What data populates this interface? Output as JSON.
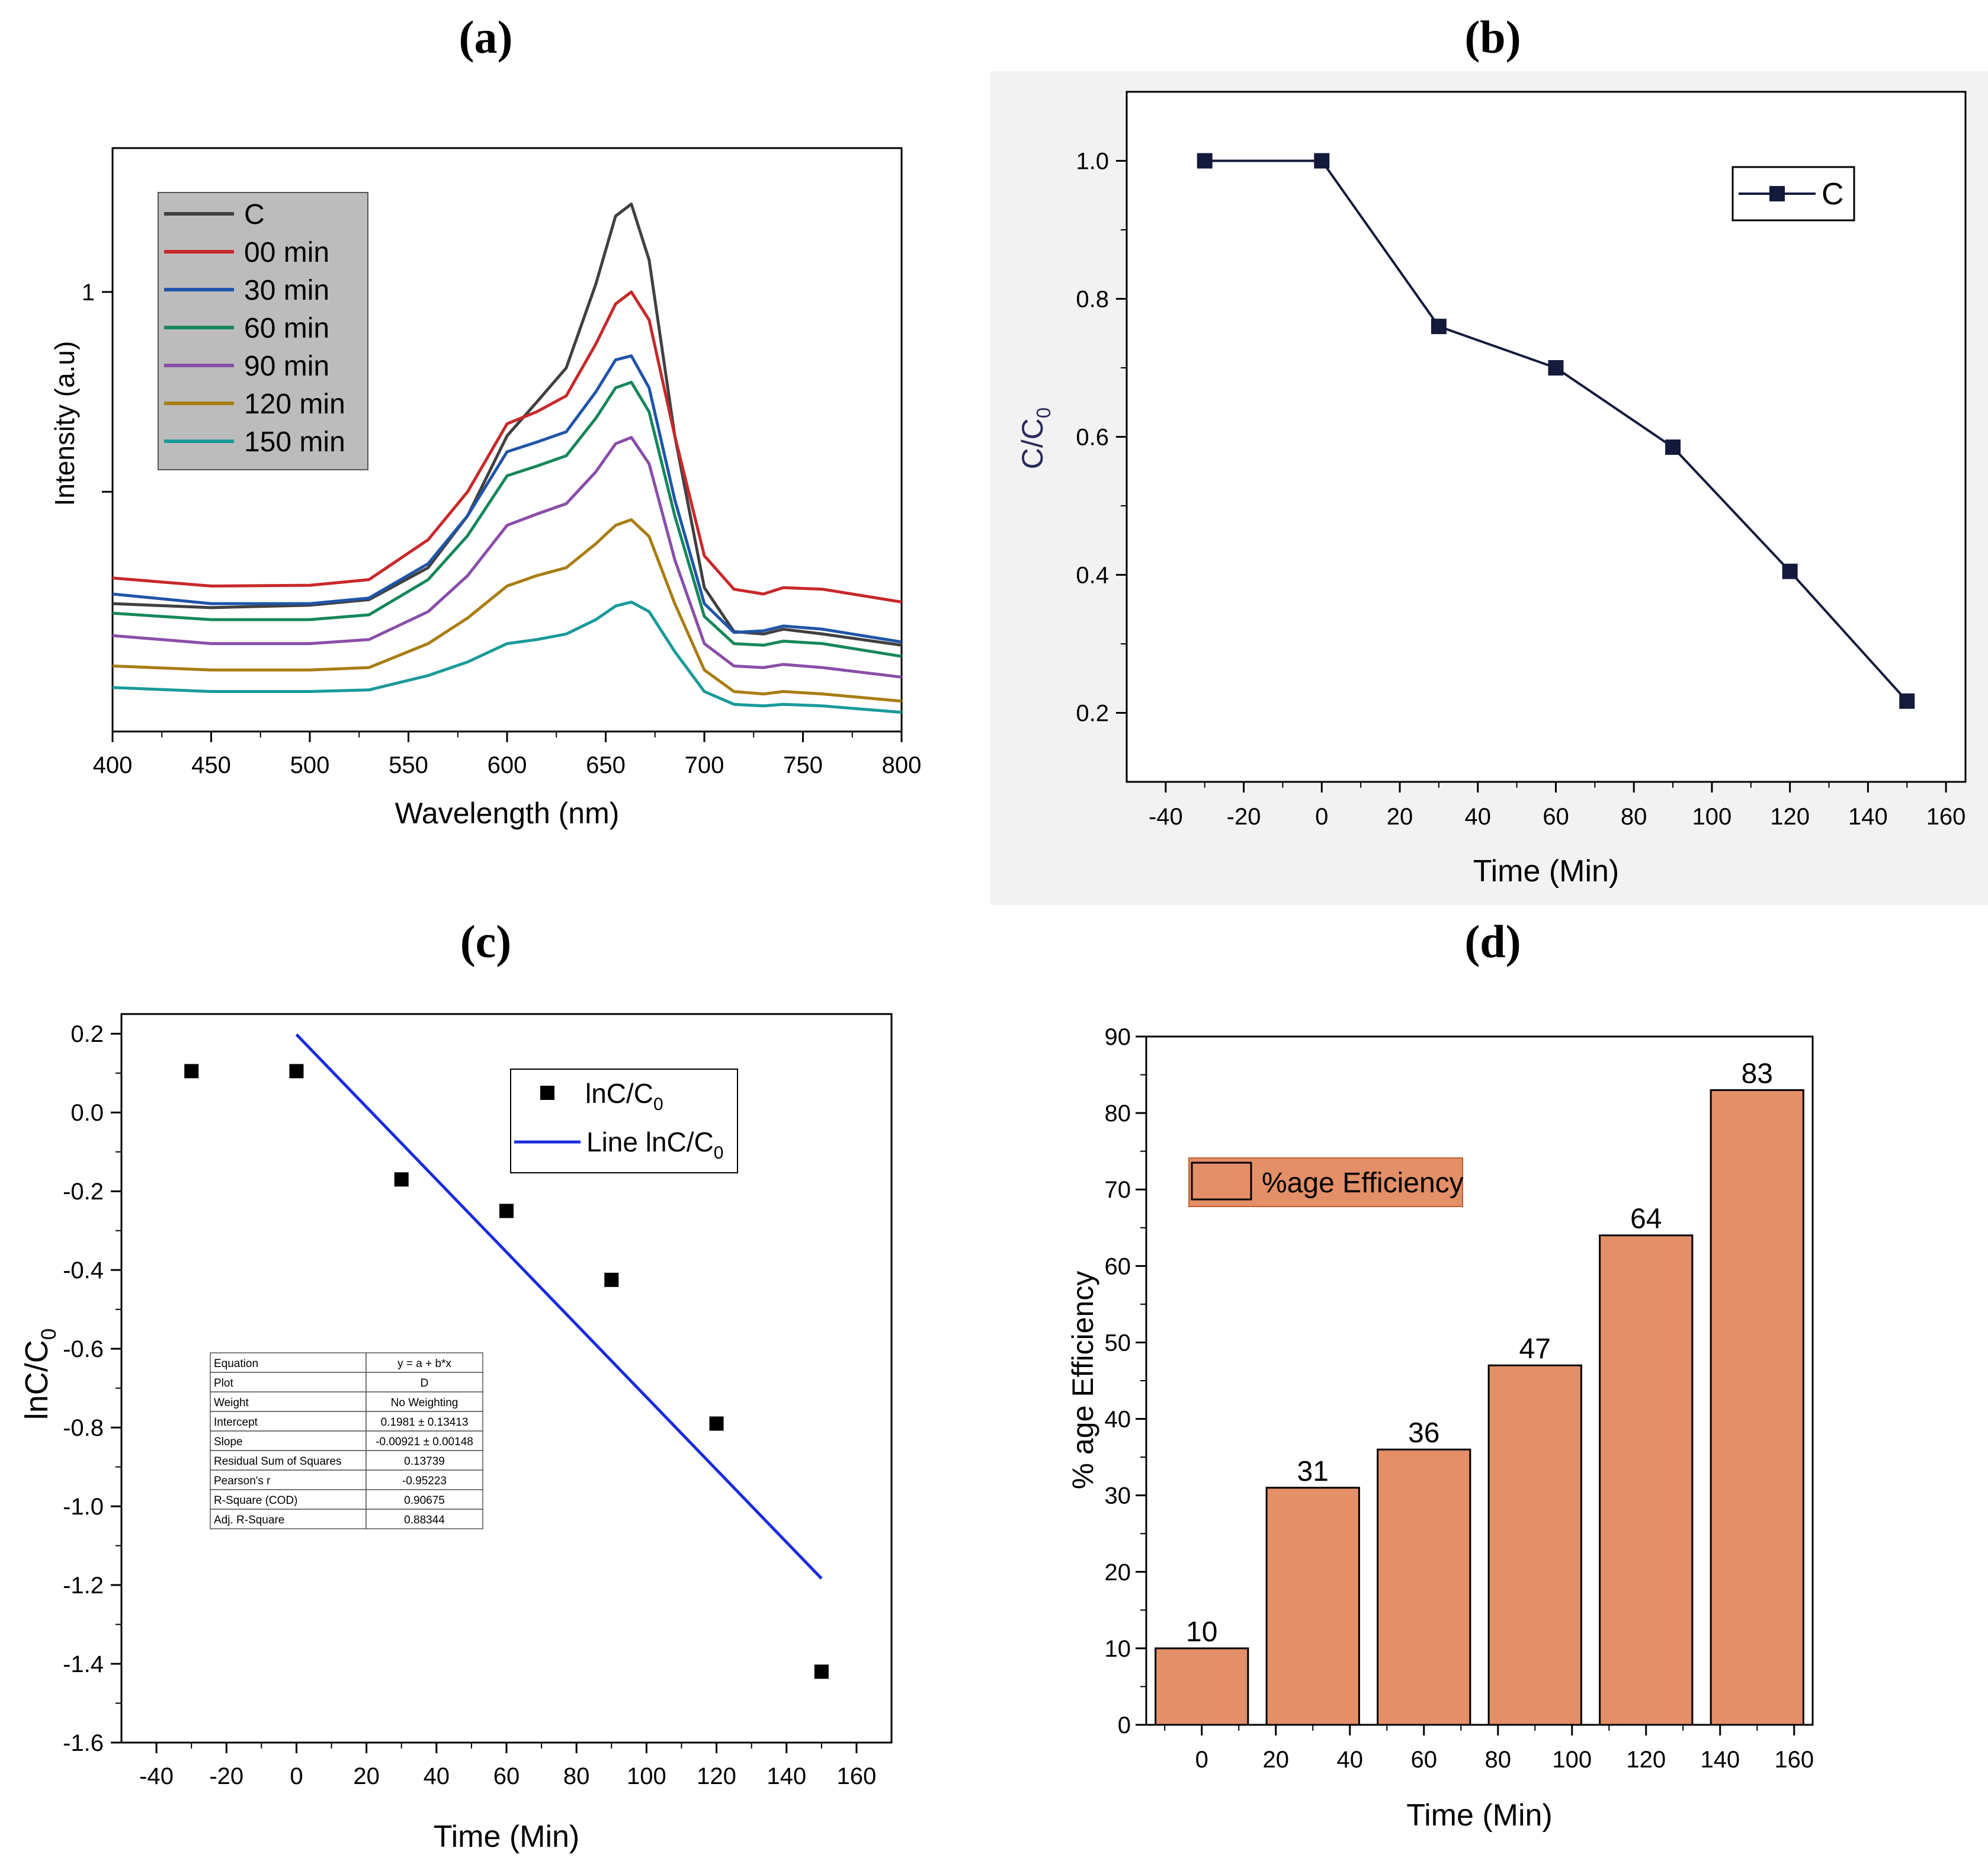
{
  "chart_data": [
    {
      "panel": "(a)",
      "type": "line",
      "xlabel": "Wavelength (nm)",
      "ylabel": "Intensity (a.u)",
      "xlim": [
        400,
        800
      ],
      "ylim": [
        0.45,
        1.18
      ],
      "x_ticks": [
        400,
        450,
        500,
        550,
        600,
        650,
        700,
        750,
        800
      ],
      "y_tick_labels": [
        {
          "v": 1,
          "label": "1"
        },
        {
          "v": 0.75,
          "label": ""
        }
      ],
      "legend_position": "top-left",
      "series": [
        {
          "name": "C",
          "color": "#404040",
          "x": [
            400,
            450,
            500,
            530,
            560,
            580,
            600,
            615,
            630,
            645,
            655,
            663,
            672,
            685,
            700,
            715,
            730,
            740,
            760,
            800
          ],
          "y": [
            0.61,
            0.605,
            0.608,
            0.615,
            0.655,
            0.72,
            0.82,
            0.862,
            0.905,
            1.01,
            1.095,
            1.11,
            1.04,
            0.82,
            0.63,
            0.575,
            0.572,
            0.578,
            0.572,
            0.558
          ]
        },
        {
          "name": "00 min",
          "color": "#c8282a",
          "x": [
            400,
            450,
            500,
            530,
            560,
            580,
            600,
            615,
            630,
            645,
            655,
            663,
            672,
            685,
            700,
            715,
            730,
            740,
            760,
            800
          ],
          "y": [
            0.642,
            0.632,
            0.633,
            0.64,
            0.69,
            0.75,
            0.835,
            0.85,
            0.87,
            0.935,
            0.985,
            1.0,
            0.965,
            0.82,
            0.67,
            0.628,
            0.622,
            0.63,
            0.628,
            0.612
          ]
        },
        {
          "name": "30 min",
          "color": "#1f55a8",
          "x": [
            400,
            450,
            500,
            530,
            560,
            580,
            600,
            615,
            630,
            645,
            655,
            663,
            672,
            685,
            700,
            715,
            730,
            740,
            760,
            800
          ],
          "y": [
            0.622,
            0.61,
            0.61,
            0.617,
            0.66,
            0.72,
            0.8,
            0.812,
            0.825,
            0.875,
            0.915,
            0.92,
            0.88,
            0.74,
            0.61,
            0.574,
            0.576,
            0.582,
            0.578,
            0.562
          ]
        },
        {
          "name": "60 min",
          "color": "#16875a",
          "x": [
            400,
            450,
            500,
            530,
            560,
            580,
            600,
            615,
            630,
            645,
            655,
            663,
            672,
            685,
            700,
            715,
            730,
            740,
            760,
            800
          ],
          "y": [
            0.598,
            0.59,
            0.59,
            0.596,
            0.64,
            0.695,
            0.77,
            0.782,
            0.795,
            0.842,
            0.88,
            0.887,
            0.85,
            0.72,
            0.594,
            0.56,
            0.558,
            0.563,
            0.56,
            0.544
          ]
        },
        {
          "name": "90 min",
          "color": "#8a4ea8",
          "x": [
            400,
            450,
            500,
            530,
            560,
            580,
            600,
            615,
            630,
            645,
            655,
            663,
            672,
            685,
            700,
            715,
            730,
            740,
            760,
            800
          ],
          "y": [
            0.57,
            0.56,
            0.56,
            0.565,
            0.6,
            0.645,
            0.708,
            0.722,
            0.735,
            0.775,
            0.81,
            0.818,
            0.785,
            0.665,
            0.56,
            0.532,
            0.53,
            0.534,
            0.53,
            0.518
          ]
        },
        {
          "name": "120 min",
          "color": "#a87d12",
          "x": [
            400,
            450,
            500,
            530,
            560,
            580,
            600,
            615,
            630,
            645,
            655,
            663,
            672,
            685,
            700,
            715,
            730,
            740,
            760,
            800
          ],
          "y": [
            0.532,
            0.527,
            0.527,
            0.53,
            0.56,
            0.592,
            0.632,
            0.645,
            0.655,
            0.685,
            0.708,
            0.715,
            0.694,
            0.61,
            0.527,
            0.5,
            0.497,
            0.5,
            0.497,
            0.488
          ]
        },
        {
          "name": "150 min",
          "color": "#1a9a9a",
          "x": [
            400,
            450,
            500,
            530,
            560,
            580,
            600,
            615,
            630,
            645,
            655,
            663,
            672,
            685,
            700,
            715,
            730,
            740,
            760,
            800
          ],
          "y": [
            0.505,
            0.5,
            0.5,
            0.502,
            0.52,
            0.537,
            0.56,
            0.565,
            0.572,
            0.59,
            0.607,
            0.612,
            0.6,
            0.55,
            0.5,
            0.484,
            0.482,
            0.484,
            0.482,
            0.474
          ]
        }
      ]
    },
    {
      "panel": "(b)",
      "type": "line",
      "xlabel": "Time (Min)",
      "ylabel_main": "C/C",
      "ylabel_sub": "0",
      "xlim": [
        -50,
        165
      ],
      "ylim": [
        0.1,
        1.1
      ],
      "x_ticks": [
        -40,
        -20,
        0,
        20,
        40,
        60,
        80,
        100,
        120,
        140,
        160
      ],
      "y_ticks": [
        {
          "v": 0.2,
          "label": "0.2"
        },
        {
          "v": 0.4,
          "label": "0.4"
        },
        {
          "v": 0.6,
          "label": "0.6"
        },
        {
          "v": 0.8,
          "label": "0.8"
        },
        {
          "v": 1.0,
          "label": "1.0"
        }
      ],
      "legend_position": "top-right",
      "series": [
        {
          "name": "C",
          "color": "#141a3c",
          "x": [
            -30,
            0,
            30,
            60,
            90,
            120,
            150
          ],
          "y": [
            1.0,
            1.0,
            0.76,
            0.7,
            0.585,
            0.405,
            0.217
          ]
        }
      ]
    },
    {
      "panel": "(c)",
      "type": "scatter",
      "xlabel": "Time (Min)",
      "ylabel_main": "lnC/C",
      "ylabel_sub": "0",
      "xlim": [
        -50,
        170
      ],
      "ylim": [
        -1.6,
        0.25
      ],
      "x_ticks": [
        -40,
        -20,
        0,
        20,
        40,
        60,
        80,
        100,
        120,
        140,
        160
      ],
      "y_ticks": [
        {
          "v": 0.2,
          "label": "0.2"
        },
        {
          "v": 0.0,
          "label": "0.0"
        },
        {
          "v": -0.2,
          "label": "-0.2"
        },
        {
          "v": -0.4,
          "label": "-0.4"
        },
        {
          "v": -0.6,
          "label": "-0.6"
        },
        {
          "v": -0.8,
          "label": "-0.8"
        },
        {
          "v": -1.0,
          "label": "-1.0"
        },
        {
          "v": -1.2,
          "label": "-1.2"
        },
        {
          "v": -1.4,
          "label": "-1.4"
        },
        {
          "v": -1.6,
          "label": "-1.6"
        }
      ],
      "legend_position": "top-right",
      "series": [
        {
          "name_main": "lnC/C",
          "name_sub": "0",
          "color": "#000000",
          "x": [
            -30,
            0,
            30,
            60,
            90,
            120,
            150
          ],
          "y": [
            0.105,
            0.105,
            -0.17,
            -0.25,
            -0.425,
            -0.79,
            -1.42
          ]
        },
        {
          "name_main": "Line lnC/C",
          "name_sub": "0",
          "color": "#1a2cdc",
          "x": [
            0,
            150
          ],
          "y": [
            0.1981,
            -1.1834
          ]
        }
      ],
      "fit_table": [
        [
          "Equation",
          "y = a + b*x"
        ],
        [
          "Plot",
          "D"
        ],
        [
          "Weight",
          "No Weighting"
        ],
        [
          "Intercept",
          "0.1981 ± 0.13413"
        ],
        [
          "Slope",
          "-0.00921 ± 0.00148"
        ],
        [
          "Residual Sum of Squares",
          "0.13739"
        ],
        [
          "Pearson's r",
          "-0.95223"
        ],
        [
          "R-Square (COD)",
          "0.90675"
        ],
        [
          "Adj. R-Square",
          "0.88344"
        ]
      ]
    },
    {
      "panel": "(d)",
      "type": "bar",
      "xlabel": "Time (Min)",
      "ylabel": "% age Efficiency",
      "xlim": [
        -15,
        165
      ],
      "ylim": [
        0,
        90
      ],
      "x_ticks": [
        0,
        20,
        40,
        60,
        80,
        100,
        120,
        140,
        160
      ],
      "y_ticks": [
        0,
        10,
        20,
        30,
        40,
        50,
        60,
        70,
        80,
        90
      ],
      "legend_position": "top-left",
      "bar_color": "#e38f68",
      "series": [
        {
          "name": "%age Efficiency",
          "x": [
            0,
            30,
            60,
            90,
            120,
            150
          ],
          "values": [
            10,
            31,
            36,
            47,
            64,
            83
          ],
          "value_labels": [
            "10",
            "31",
            "36",
            "47",
            "64",
            "83"
          ]
        }
      ]
    }
  ]
}
